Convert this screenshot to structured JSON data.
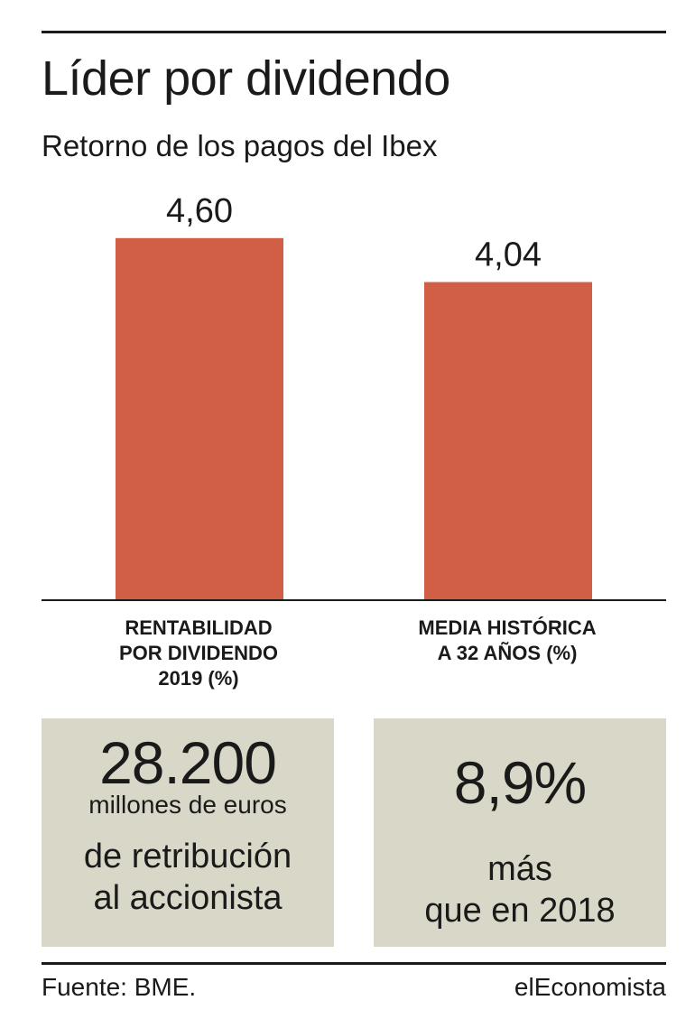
{
  "header": {
    "title": "Líder por dividendo",
    "subtitle": "Retorno de los pagos del Ibex"
  },
  "chart_data": {
    "type": "bar",
    "title": "Líder por dividendo",
    "subtitle": "Retorno de los pagos del Ibex",
    "categories": [
      "RENTABILIDAD POR DIVIDENDO 2019 (%)",
      "MEDIA HISTÓRICA A 32 AÑOS (%)"
    ],
    "category_lines": [
      [
        "RENTABILIDAD",
        "POR DIVIDENDO",
        "2019 (%)"
      ],
      [
        "MEDIA HISTÓRICA",
        "A 32 AÑOS (%)"
      ]
    ],
    "values": [
      4.6,
      4.04
    ],
    "value_labels": [
      "4,60",
      "4,04"
    ],
    "bar_color": "#d05f45",
    "ylim": [
      0,
      5
    ],
    "grid": false,
    "legend": "none"
  },
  "stats": [
    {
      "value": "28.200",
      "unit": "millones de euros",
      "desc_line1": "de retribución",
      "desc_line2": "al accionista"
    },
    {
      "value": "8,9%",
      "desc_line1": "más",
      "desc_line2": "que en 2018"
    }
  ],
  "footer": {
    "source": "Fuente: BME.",
    "brand": "elEconomista"
  },
  "colors": {
    "bar": "#d05f45",
    "box_background": "#d9d8c8",
    "text": "#1a1a1a"
  }
}
